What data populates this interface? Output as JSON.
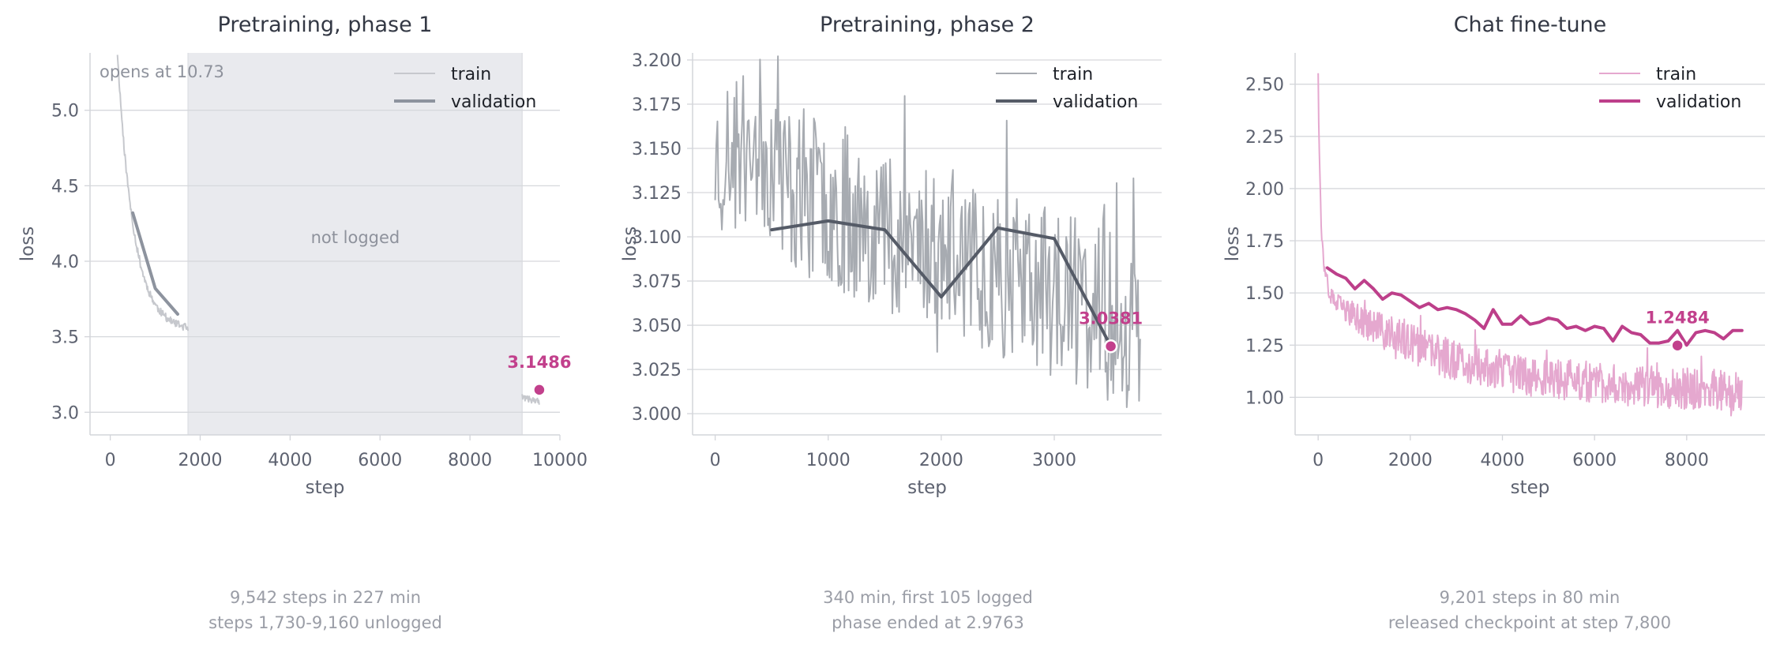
{
  "colors": {
    "axis": "#d3d5da",
    "grid": "#d6d8dc",
    "text": "#5d6270",
    "title": "#333844",
    "footnote": "#9a9da6",
    "accent": "#c2408c",
    "gap_shade": "#e9eaee",
    "train_gray": "#c6c8cd",
    "train_dark": "#a7abb1",
    "val_p1": "#8d939e",
    "val_p2": "#555b67",
    "train_pink": "#e5a8cf",
    "val_pink": "#bd3f8a"
  },
  "footnotes": [
    [
      "9,542 steps in 227 min",
      "steps 1,730-9,160 unlogged"
    ],
    [
      "340 min, first 105 logged",
      "phase ended at 2.9763"
    ],
    [
      "9,201 steps in 80 min",
      "released checkpoint at step 7,800"
    ]
  ],
  "chart_data": [
    {
      "type": "line",
      "title": "Pretraining, phase 1",
      "xlabel": "step",
      "ylabel": "loss",
      "xlim": [
        -450,
        10000
      ],
      "ylim": [
        2.85,
        5.38
      ],
      "xticks": [
        0,
        2000,
        4000,
        6000,
        8000,
        10000
      ],
      "yticks": [
        3.0,
        3.5,
        4.0,
        4.5,
        5.0
      ],
      "ytick_decimals": 1,
      "grid": "horizontal",
      "legend": {
        "position": "top-right",
        "entries": [
          "train",
          "validation"
        ]
      },
      "annotations": [
        {
          "text": "opens at 10.73",
          "position": "top-left"
        },
        {
          "text": "not logged",
          "x": 5450,
          "y": 4.12
        }
      ],
      "unlogged_range": [
        1730,
        9160
      ],
      "series": [
        {
          "name": "train",
          "role": "train",
          "color": "#c6c8cd",
          "width": 2,
          "segments": [
            {
              "x_start": 160,
              "x_end": 1730,
              "points": 130,
              "start": 5.38,
              "end": 3.56,
              "decay": 360,
              "noise": 0.025
            },
            {
              "x_start": 9160,
              "x_end": 9540,
              "points": 30,
              "start": 3.1,
              "end": 3.07,
              "decay": 1000,
              "noise": 0.02
            }
          ]
        },
        {
          "name": "validation",
          "role": "validation",
          "color": "#8d939e",
          "width": 4,
          "x": [
            500,
            1000,
            1500
          ],
          "y": [
            4.32,
            3.82,
            3.65
          ]
        }
      ],
      "final_marker": {
        "x": 9542,
        "y": 3.1486,
        "label": "3.1486"
      }
    },
    {
      "type": "line",
      "title": "Pretraining, phase 2",
      "xlabel": "step",
      "ylabel": "loss",
      "xlim": [
        -200,
        3950
      ],
      "ylim": [
        2.988,
        3.204
      ],
      "xticks": [
        0,
        1000,
        2000,
        3000
      ],
      "yticks": [
        3.0,
        3.025,
        3.05,
        3.075,
        3.1,
        3.125,
        3.15,
        3.175,
        3.2
      ],
      "ytick_decimals": 3,
      "grid": "horizontal",
      "legend": {
        "position": "top-right",
        "entries": [
          "train",
          "validation"
        ]
      },
      "series": [
        {
          "name": "train",
          "role": "train",
          "color": "#a7abb1",
          "width": 2,
          "segments": [
            {
              "x_start": 0,
              "x_end": 3760,
              "points": 380,
              "start": 3.145,
              "end": 3.048,
              "decay": 0,
              "noise": 0.048,
              "bump": {
                "center": 380,
                "width": 180,
                "height": 0.018
              }
            }
          ]
        },
        {
          "name": "validation",
          "role": "validation",
          "color": "#555b67",
          "width": 4,
          "x": [
            500,
            1000,
            1500,
            2000,
            2500,
            3000,
            3500
          ],
          "y": [
            3.104,
            3.109,
            3.104,
            3.066,
            3.105,
            3.099,
            3.0381
          ]
        }
      ],
      "final_marker": {
        "x": 3500,
        "y": 3.0381,
        "label": "3.0381"
      }
    },
    {
      "type": "line",
      "title": "Chat fine-tune",
      "xlabel": "step",
      "ylabel": "loss",
      "xlim": [
        -500,
        9700
      ],
      "ylim": [
        0.82,
        2.65
      ],
      "xticks": [
        0,
        2000,
        4000,
        6000,
        8000
      ],
      "yticks": [
        1.0,
        1.25,
        1.5,
        1.75,
        2.0,
        2.25,
        2.5
      ],
      "ytick_decimals": 2,
      "grid": "horizontal",
      "legend": {
        "position": "top-right",
        "entries": [
          "train",
          "validation"
        ]
      },
      "series": [
        {
          "name": "train",
          "role": "train",
          "color": "#e5a8cf",
          "width": 2,
          "segments": [
            {
              "x_start": 0,
              "x_end": 9200,
              "points": 700,
              "start": 2.56,
              "end": 1.0,
              "decay": 0,
              "noise": 0.1,
              "curve": "finetune"
            }
          ]
        },
        {
          "name": "validation",
          "role": "validation",
          "color": "#bd3f8a",
          "width": 4,
          "x": [
            200,
            400,
            600,
            800,
            1000,
            1200,
            1400,
            1600,
            1800,
            2000,
            2200,
            2400,
            2600,
            2800,
            3000,
            3200,
            3400,
            3600,
            3800,
            4000,
            4200,
            4400,
            4600,
            4800,
            5000,
            5200,
            5400,
            5600,
            5800,
            6000,
            6200,
            6400,
            6600,
            6800,
            7000,
            7200,
            7400,
            7600,
            7800,
            8000,
            8200,
            8400,
            8600,
            8800,
            9000,
            9200
          ],
          "y": [
            1.62,
            1.59,
            1.57,
            1.52,
            1.56,
            1.52,
            1.47,
            1.5,
            1.49,
            1.46,
            1.43,
            1.45,
            1.42,
            1.43,
            1.42,
            1.4,
            1.37,
            1.33,
            1.42,
            1.35,
            1.35,
            1.39,
            1.35,
            1.36,
            1.38,
            1.37,
            1.33,
            1.34,
            1.32,
            1.34,
            1.33,
            1.27,
            1.34,
            1.31,
            1.3,
            1.26,
            1.26,
            1.27,
            1.32,
            1.25,
            1.31,
            1.32,
            1.31,
            1.28,
            1.32,
            1.32
          ]
        }
      ],
      "final_marker": {
        "x": 7800,
        "y": 1.2484,
        "label": "1.2484"
      }
    }
  ]
}
